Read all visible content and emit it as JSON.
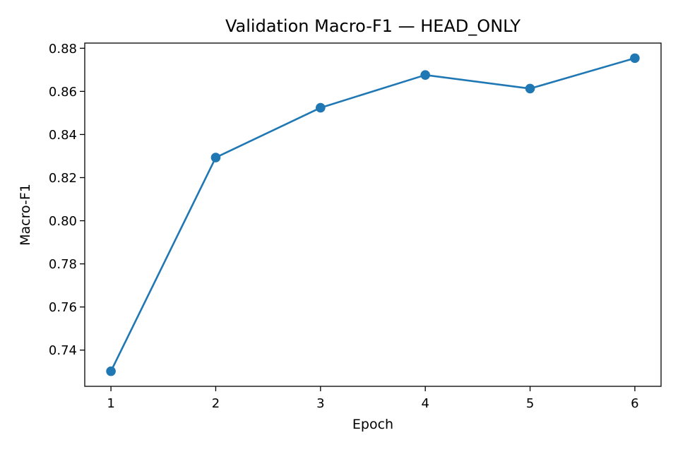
{
  "chart_data": {
    "type": "line",
    "title": "Validation Macro-F1 — HEAD_ONLY",
    "xlabel": "Epoch",
    "ylabel": "Macro-F1",
    "x": [
      1,
      2,
      3,
      4,
      5,
      6
    ],
    "series": [
      {
        "values": [
          0.7302,
          0.8293,
          0.8524,
          0.8676,
          0.8613,
          0.8754
        ],
        "color": "#1f77b4",
        "marker": "circle"
      }
    ],
    "xticks": [
      "1",
      "2",
      "3",
      "4",
      "5",
      "6"
    ],
    "yticks": [
      "0.74",
      "0.76",
      "0.78",
      "0.80",
      "0.82",
      "0.84",
      "0.86",
      "0.88"
    ],
    "xlim": [
      0.75,
      6.25
    ],
    "ylim": [
      0.7232,
      0.8824
    ],
    "grid": false,
    "legend": "none"
  }
}
